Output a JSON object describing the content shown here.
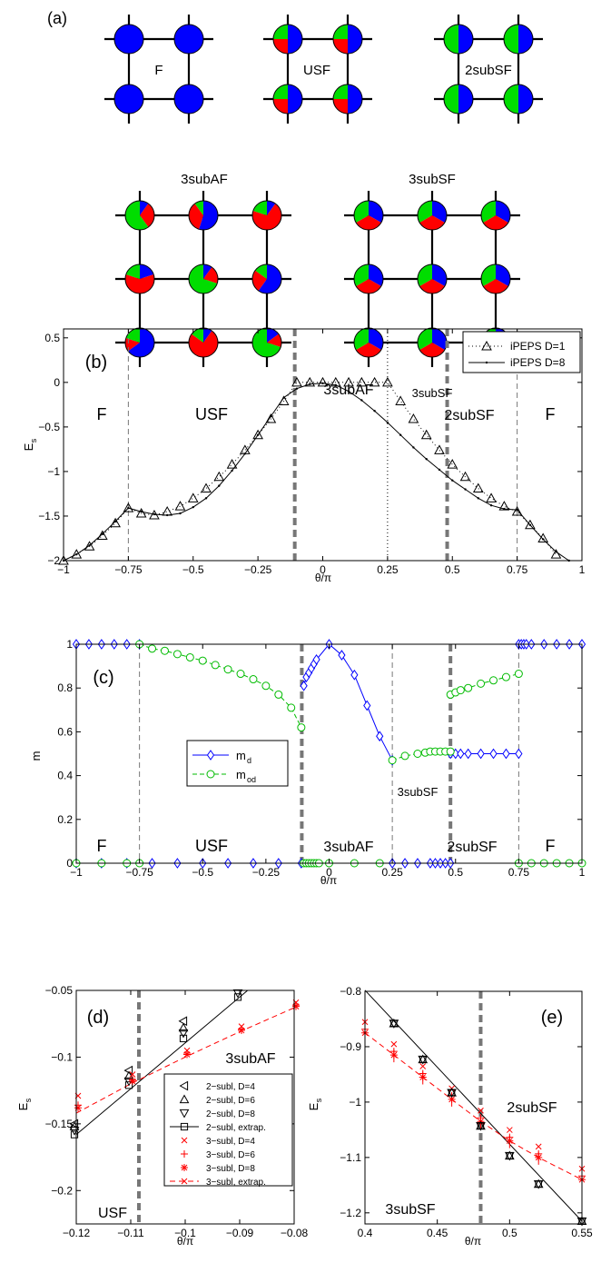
{
  "panel_a": {
    "label": "(a)",
    "lattices": [
      {
        "name": "F",
        "pies": [
          [
            1,
            0,
            0
          ],
          [
            1,
            0,
            0
          ],
          [
            1,
            0,
            0
          ],
          [
            1,
            0,
            0
          ]
        ]
      },
      {
        "name": "USF",
        "pies": [
          [
            0.5,
            0.25,
            0.25
          ],
          [
            0.5,
            0.25,
            0.25
          ],
          [
            0.5,
            0.25,
            0.25
          ],
          [
            0.5,
            0.25,
            0.25
          ]
        ]
      },
      {
        "name": "2subSF",
        "pies": [
          [
            0.5,
            0,
            0.5
          ],
          [
            0.5,
            0,
            0.5
          ],
          [
            0.5,
            0,
            0.5
          ],
          [
            0.5,
            0,
            0.5
          ]
        ]
      },
      {
        "name": "3subAF",
        "pies": [
          [
            0.1,
            0.3,
            0.6
          ],
          [
            0.55,
            0.35,
            0.1
          ],
          [
            0.1,
            0.7,
            0.2
          ],
          [
            0.2,
            0.6,
            0.2
          ],
          [
            0.1,
            0.2,
            0.7
          ],
          [
            0.6,
            0.25,
            0.15
          ],
          [
            0.65,
            0.15,
            0.2
          ],
          [
            0.1,
            0.75,
            0.15
          ],
          [
            0.15,
            0.15,
            0.7
          ]
        ]
      },
      {
        "name": "3subSF",
        "pies": [
          [
            0.333,
            0.333,
            0.334
          ],
          [
            0.333,
            0.333,
            0.334
          ],
          [
            0.333,
            0.333,
            0.334
          ],
          [
            0.333,
            0.333,
            0.334
          ],
          [
            0.333,
            0.333,
            0.334
          ],
          [
            0.333,
            0.333,
            0.334
          ],
          [
            0.333,
            0.333,
            0.334
          ],
          [
            0.333,
            0.333,
            0.334
          ],
          [
            0.333,
            0.333,
            0.334
          ]
        ]
      }
    ],
    "colors": {
      "blue": "#0000ff",
      "red": "#ff0000",
      "green": "#00dd00"
    }
  },
  "chart_data": [
    {
      "panel": "(b)",
      "type": "line",
      "xlabel": "θ/π",
      "ylabel": "E_s",
      "xlim": [
        -1,
        1
      ],
      "ylim": [
        -2,
        0.6
      ],
      "xticks": [
        "−1",
        "−0.75",
        "−0.5",
        "−0.25",
        "0",
        "0.25",
        "0.5",
        "0.75",
        "1"
      ],
      "yticks": [
        "0.5",
        "0",
        "−0.5",
        "−1",
        "−1.5",
        "−2"
      ],
      "legend_position": "top-right",
      "phase_labels": [
        "F",
        "USF",
        "3subAF",
        "3subSF",
        "2subSF",
        "F"
      ],
      "phase_boundaries_thin": [
        -0.75,
        0.75
      ],
      "phase_boundaries_thick": [
        -0.108,
        0.48
      ],
      "phase_boundaries_dotted": [
        0.25
      ],
      "series": [
        {
          "name": "iPEPS D=1",
          "marker": "triangle",
          "color": "#000000",
          "x": [
            -1.0,
            -0.95,
            -0.9,
            -0.85,
            -0.8,
            -0.75,
            -0.7,
            -0.65,
            -0.6,
            -0.55,
            -0.5,
            -0.45,
            -0.4,
            -0.35,
            -0.3,
            -0.25,
            -0.2,
            -0.15,
            -0.1,
            -0.05,
            0.0,
            0.05,
            0.1,
            0.15,
            0.2,
            0.25,
            0.3,
            0.35,
            0.4,
            0.45,
            0.5,
            0.55,
            0.6,
            0.65,
            0.7,
            0.75,
            0.8,
            0.85,
            0.9
          ],
          "y": [
            -2.0,
            -1.93,
            -1.84,
            -1.72,
            -1.58,
            -1.41,
            -1.47,
            -1.49,
            -1.45,
            -1.39,
            -1.3,
            -1.19,
            -1.06,
            -0.92,
            -0.76,
            -0.59,
            -0.41,
            -0.21,
            0.0,
            0.0,
            0.0,
            0.0,
            0.0,
            0.0,
            0.0,
            0.0,
            -0.21,
            -0.41,
            -0.59,
            -0.76,
            -0.92,
            -1.06,
            -1.19,
            -1.3,
            -1.39,
            -1.45,
            -1.6,
            -1.75,
            -1.93
          ]
        },
        {
          "name": "iPEPS D=8",
          "marker": "dot",
          "color": "#000000",
          "x": [
            -1.0,
            -0.95,
            -0.9,
            -0.85,
            -0.8,
            -0.75,
            -0.7,
            -0.65,
            -0.6,
            -0.55,
            -0.5,
            -0.45,
            -0.4,
            -0.35,
            -0.3,
            -0.25,
            -0.2,
            -0.15,
            -0.1,
            -0.05,
            0.0,
            0.05,
            0.1,
            0.15,
            0.2,
            0.25,
            0.3,
            0.35,
            0.4,
            0.45,
            0.5,
            0.55,
            0.6,
            0.65,
            0.7,
            0.75,
            0.8,
            0.85,
            0.9,
            0.95
          ],
          "y": [
            -2.0,
            -1.93,
            -1.83,
            -1.7,
            -1.56,
            -1.41,
            -1.45,
            -1.48,
            -1.49,
            -1.47,
            -1.4,
            -1.3,
            -1.16,
            -0.99,
            -0.8,
            -0.59,
            -0.38,
            -0.17,
            -0.07,
            -0.02,
            -0.01,
            -0.03,
            -0.1,
            -0.2,
            -0.32,
            -0.45,
            -0.59,
            -0.73,
            -0.86,
            -0.98,
            -1.1,
            -1.2,
            -1.3,
            -1.38,
            -1.42,
            -1.43,
            -1.6,
            -1.76,
            -1.9,
            -2.0
          ]
        }
      ]
    },
    {
      "panel": "(c)",
      "type": "line",
      "xlabel": "θ/π",
      "ylabel": "m",
      "xlim": [
        -1,
        1
      ],
      "ylim": [
        0,
        1
      ],
      "xticks": [
        "−1",
        "−0.75",
        "−0.5",
        "−0.25",
        "0",
        "0.25",
        "0.5",
        "0.75",
        "1"
      ],
      "yticks": [
        "1",
        "0.8",
        "0.6",
        "0.4",
        "0.2",
        "0"
      ],
      "legend_position": "center-left",
      "phase_labels": [
        "F",
        "USF",
        "3subAF",
        "3subSF",
        "2subSF",
        "F"
      ],
      "phase_boundaries_thin": [
        -0.75,
        0.25,
        0.75
      ],
      "phase_boundaries_thick": [
        -0.108,
        0.48
      ],
      "series": [
        {
          "name": "m_d",
          "marker": "diamond",
          "color": "#0000ff",
          "segments": [
            {
              "x": [
                -1.0,
                -0.95,
                -0.9,
                -0.85,
                -0.8,
                -0.75
              ],
              "y": [
                1,
                1,
                1,
                1,
                1,
                1
              ]
            },
            {
              "x": [
                -1.0,
                -0.9,
                -0.8,
                -0.7,
                -0.6,
                -0.5,
                -0.4,
                -0.3,
                -0.2,
                -0.11
              ],
              "y": [
                0,
                0,
                0,
                0,
                0,
                0,
                0,
                0,
                0,
                0
              ]
            },
            {
              "x": [
                -0.1,
                -0.09,
                -0.08,
                -0.07,
                -0.06,
                -0.05,
                0.0,
                0.05,
                0.1,
                0.15,
                0.2,
                0.25
              ],
              "y": [
                0.81,
                0.85,
                0.87,
                0.89,
                0.91,
                0.93,
                1.0,
                0.95,
                0.86,
                0.72,
                0.58,
                0.47
              ]
            },
            {
              "x": [
                0.25,
                0.3,
                0.35,
                0.4,
                0.42,
                0.44,
                0.46,
                0.48
              ],
              "y": [
                0,
                0,
                0,
                0,
                0,
                0,
                0,
                0
              ]
            },
            {
              "x": [
                0.48,
                0.5,
                0.52,
                0.55,
                0.6,
                0.65,
                0.7,
                0.75
              ],
              "y": [
                0.5,
                0.5,
                0.5,
                0.5,
                0.5,
                0.5,
                0.5,
                0.5
              ]
            },
            {
              "x": [
                0.75,
                0.76,
                0.77,
                0.78,
                0.8,
                0.85,
                0.9,
                0.95,
                1.0
              ],
              "y": [
                1,
                1,
                1,
                1,
                1,
                1,
                1,
                1,
                1
              ]
            }
          ]
        },
        {
          "name": "m_od",
          "marker": "circle",
          "color": "#00bb00",
          "segments": [
            {
              "x": [
                -1.0,
                -0.9,
                -0.8,
                -0.75
              ],
              "y": [
                0,
                0,
                0,
                0
              ]
            },
            {
              "x": [
                -0.75,
                -0.7,
                -0.65,
                -0.6,
                -0.55,
                -0.5,
                -0.45,
                -0.4,
                -0.35,
                -0.3,
                -0.25,
                -0.2,
                -0.15,
                -0.11
              ],
              "y": [
                1.0,
                0.98,
                0.97,
                0.955,
                0.94,
                0.925,
                0.905,
                0.885,
                0.865,
                0.84,
                0.81,
                0.77,
                0.71,
                0.62
              ]
            },
            {
              "x": [
                -0.1,
                -0.09,
                -0.08,
                -0.07,
                -0.06,
                -0.05,
                -0.04,
                0.0,
                0.1,
                0.2
              ],
              "y": [
                0,
                0,
                0,
                0,
                0,
                0,
                0,
                0,
                0,
                0
              ]
            },
            {
              "x": [
                0.25,
                0.3,
                0.35,
                0.38,
                0.4,
                0.42,
                0.44,
                0.46,
                0.48
              ],
              "y": [
                0.47,
                0.49,
                0.5,
                0.505,
                0.51,
                0.51,
                0.51,
                0.51,
                0.51
              ]
            },
            {
              "x": [
                0.48,
                0.5,
                0.52,
                0.55,
                0.6,
                0.65,
                0.7,
                0.75
              ],
              "y": [
                0.77,
                0.78,
                0.79,
                0.8,
                0.82,
                0.835,
                0.85,
                0.865
              ]
            },
            {
              "x": [
                0.75,
                0.8,
                0.85,
                0.9,
                0.95,
                1.0
              ],
              "y": [
                0,
                0,
                0,
                0,
                0,
                0
              ]
            }
          ]
        }
      ]
    },
    {
      "panel": "(d)",
      "type": "scatter",
      "xlabel": "θ/π",
      "ylabel": "E_s",
      "xlim": [
        -0.12,
        -0.08
      ],
      "ylim": [
        -0.225,
        -0.05
      ],
      "xticks": [
        "−0.12",
        "−0.11",
        "−0.1",
        "−0.09",
        "−0.08"
      ],
      "yticks": [
        "−0.05",
        "−0.1",
        "−0.15",
        "−0.2"
      ],
      "phase_labels": [
        "3subAF",
        "USF"
      ],
      "phase_boundaries_thick": [
        -0.1085
      ],
      "legend_position": "center-right",
      "series": [
        {
          "name": "2−subl, D=4",
          "marker": "tri-left",
          "color": "#000000",
          "x": [
            -0.12,
            -0.11,
            -0.1,
            -0.09
          ],
          "y": [
            -0.15,
            -0.11,
            -0.073,
            -0.046
          ]
        },
        {
          "name": "2−subl, D=6",
          "marker": "tri-up",
          "color": "#000000",
          "x": [
            -0.12,
            -0.11,
            -0.1,
            -0.09
          ],
          "y": [
            -0.152,
            -0.114,
            -0.078,
            -0.049
          ]
        },
        {
          "name": "2−subl, D=8",
          "marker": "tri-down",
          "color": "#000000",
          "x": [
            -0.12,
            -0.11,
            -0.1,
            -0.09
          ],
          "y": [
            -0.155,
            -0.118,
            -0.082,
            -0.052
          ]
        },
        {
          "name": "2−subl, extrap.",
          "marker": "square-line",
          "color": "#000000",
          "x": [
            -0.12,
            -0.11,
            -0.1,
            -0.09
          ],
          "y": [
            -0.158,
            -0.121,
            -0.086,
            -0.055
          ]
        },
        {
          "name": "3−subl, D=4",
          "marker": "x",
          "color": "#ff0000",
          "x": [
            -0.12,
            -0.11,
            -0.1,
            -0.09,
            -0.08
          ],
          "y": [
            -0.129,
            -0.113,
            -0.095,
            -0.077,
            -0.059
          ]
        },
        {
          "name": "3−subl, D=6",
          "marker": "plus",
          "color": "#ff0000",
          "x": [
            -0.12,
            -0.11,
            -0.1,
            -0.09,
            -0.08
          ],
          "y": [
            -0.136,
            -0.117,
            -0.097,
            -0.079,
            -0.061
          ]
        },
        {
          "name": "3−subl, D=8",
          "marker": "star",
          "color": "#ff0000",
          "x": [
            -0.12,
            -0.11,
            -0.1,
            -0.09,
            -0.08
          ],
          "y": [
            -0.138,
            -0.118,
            -0.098,
            -0.08,
            -0.062
          ]
        },
        {
          "name": "3−subl, extrap.",
          "marker": "dash-line",
          "color": "#ff0000",
          "x": [
            -0.12,
            -0.11,
            -0.1,
            -0.09,
            -0.08
          ],
          "y": [
            -0.142,
            -0.12,
            -0.1,
            -0.081,
            -0.063
          ]
        }
      ]
    },
    {
      "panel": "(e)",
      "type": "scatter",
      "xlabel": "θ/π",
      "ylabel": "E_s",
      "xlim": [
        0.4,
        0.55
      ],
      "ylim": [
        -1.22,
        -0.8
      ],
      "xticks": [
        "0.4",
        "0.45",
        "0.5",
        "0.55"
      ],
      "yticks": [
        "−0.8",
        "−0.9",
        "−1",
        "−1.1",
        "−1.2"
      ],
      "phase_labels": [
        "2subSF",
        "3subSF"
      ],
      "phase_boundaries_thick": [
        0.48
      ],
      "series": [
        {
          "name": "2−subl",
          "marker": "black-cluster",
          "color": "#000000",
          "x": [
            0.42,
            0.44,
            0.46,
            0.48,
            0.5,
            0.52,
            0.55
          ],
          "y": [
            -0.858,
            -0.923,
            -0.983,
            -1.043,
            -1.097,
            -1.148,
            -1.215
          ]
        },
        {
          "name": "3−subl",
          "marker": "red-cluster",
          "color": "#ff0000",
          "x": [
            0.4,
            0.42,
            0.44,
            0.46,
            0.48,
            0.5,
            0.52,
            0.55
          ],
          "y": [
            -0.875,
            -0.915,
            -0.955,
            -0.995,
            -1.035,
            -1.07,
            -1.1,
            -1.14
          ]
        }
      ]
    }
  ]
}
